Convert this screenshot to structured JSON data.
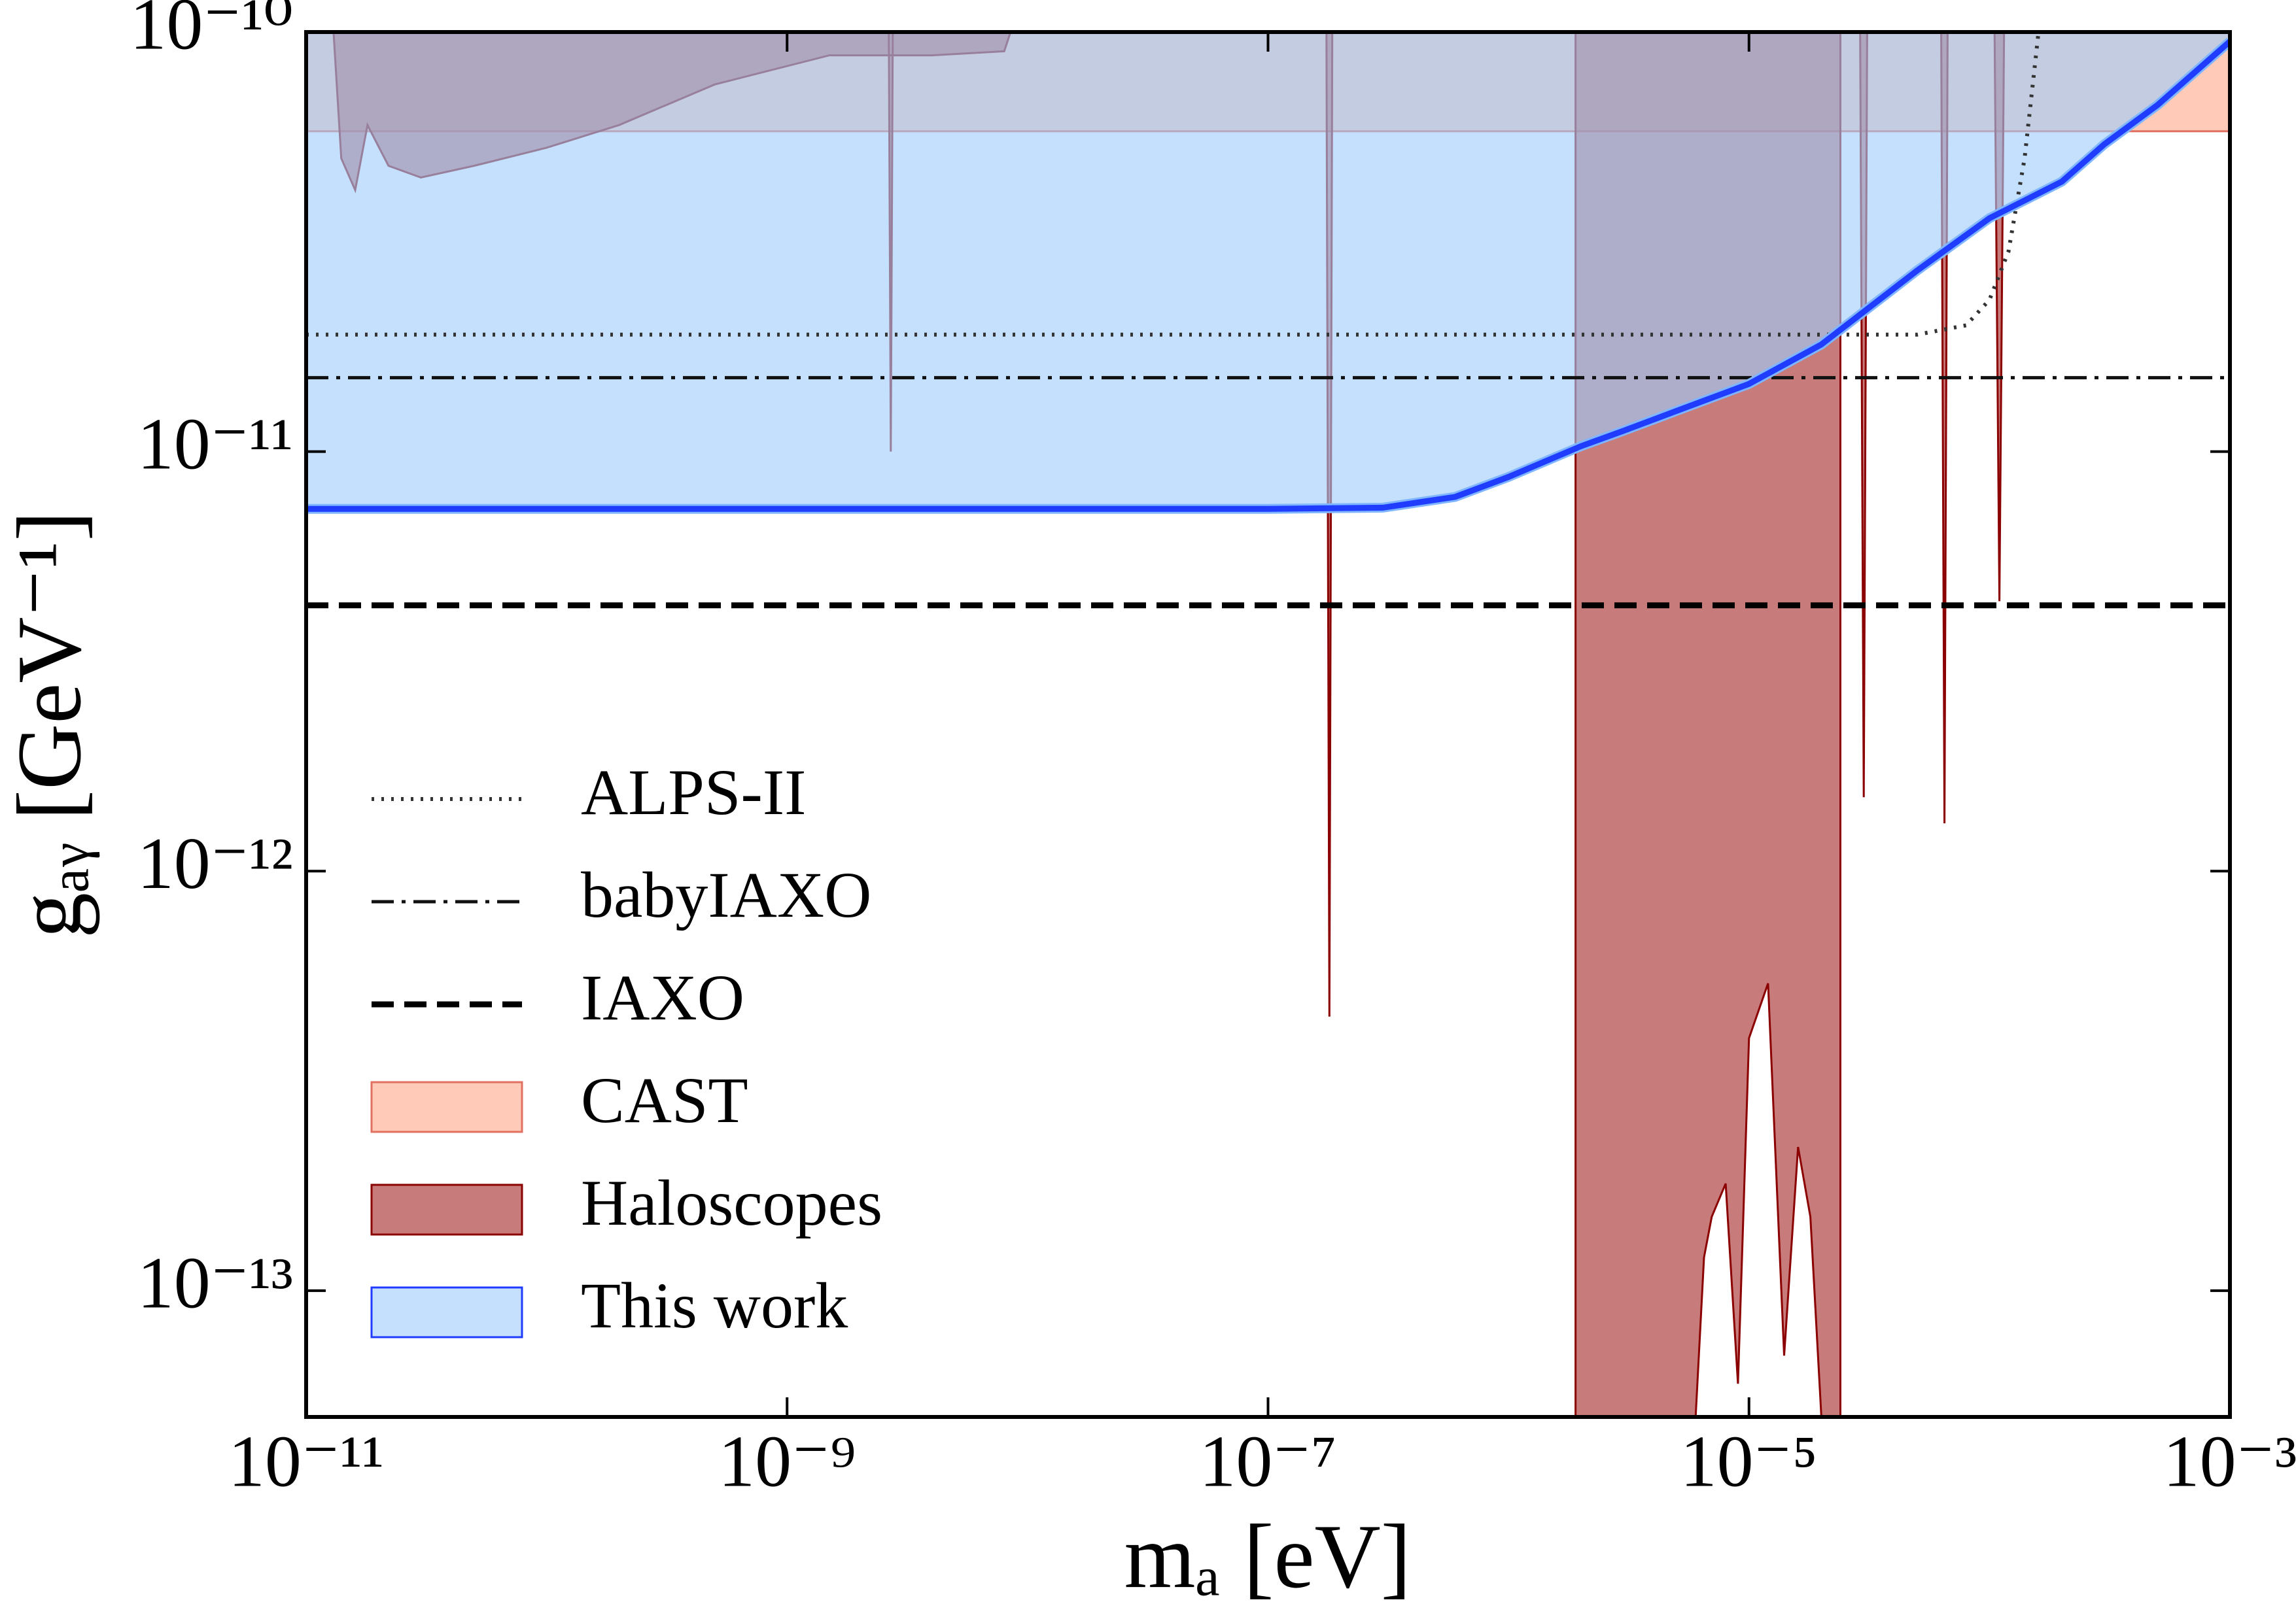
{
  "chart_data": {
    "type": "line",
    "x_label": "mₐ [eV]",
    "y_label": "gₐᵧ [GeV⁻¹]",
    "xscale": "log",
    "yscale": "log",
    "xlim": [
      1e-11,
      0.001
    ],
    "ylim": [
      5e-14,
      1e-10
    ],
    "xticks": [
      {
        "value": 1e-11,
        "label": "10⁻¹¹"
      },
      {
        "value": 1e-09,
        "label": "10⁻⁹"
      },
      {
        "value": 1e-07,
        "label": "10⁻⁷"
      },
      {
        "value": 1e-05,
        "label": "10⁻⁵"
      },
      {
        "value": 0.001,
        "label": "10⁻³"
      }
    ],
    "yticks": [
      {
        "value": 1e-13,
        "label": "10⁻¹³"
      },
      {
        "value": 1e-12,
        "label": "10⁻¹²"
      },
      {
        "value": 1e-11,
        "label": "10⁻¹¹"
      },
      {
        "value": 1e-10,
        "label": "10⁻¹⁰"
      }
    ],
    "legend": "lower left",
    "series": [
      {
        "name": "ALPS-II",
        "color": "#333333",
        "linestyle": "dotted",
        "x": [
          1e-11,
          5e-05,
          8e-05,
          0.0001,
          0.00012,
          0.00014,
          0.00016
        ],
        "values": [
          1.9e-11,
          1.9e-11,
          2e-11,
          2.3e-11,
          3e-11,
          5e-11,
          1e-10
        ]
      },
      {
        "name": "babyIAXO",
        "color": "#111111",
        "linestyle": "dashdot",
        "x": [
          1e-11,
          0.001
        ],
        "values": [
          1.5e-11,
          1.5e-11
        ]
      },
      {
        "name": "IAXO",
        "color": "#000000",
        "linestyle": "dashed",
        "x": [
          1e-11,
          0.001
        ],
        "values": [
          4.3e-12,
          4.3e-12
        ]
      },
      {
        "name": "CAST",
        "color": "#e07060",
        "fill_color": "#ffa98c",
        "fill": "above",
        "x": [
          1e-11,
          0.001
        ],
        "values": [
          5.8e-11,
          5.8e-11
        ]
      },
      {
        "name": "Haloscopes",
        "color": "#8b0000",
        "fill_color": "#a52a2a",
        "fill": "above",
        "x": [
          1.3e-11,
          1.4e-11,
          1.6e-11,
          1.8e-11,
          2.2e-11,
          3e-11,
          5e-11,
          1e-10,
          2e-10,
          5e-10,
          1.5e-09,
          4e-09,
          8e-09,
          8.5e-09,
          null,
          2.65e-09,
          2.7e-09,
          2.75e-09,
          null,
          1.75e-07,
          1.8e-07,
          1.85e-07,
          null,
          1.9e-06,
          1.9e-06,
          6e-06,
          6.5e-06,
          7e-06,
          8e-06,
          9e-06,
          1e-05,
          1.2e-05,
          1.4e-05,
          1.6e-05,
          1.8e-05,
          2e-05,
          2.4e-05,
          2.4e-05,
          null,
          2.9e-05,
          3e-05,
          3.1e-05,
          null,
          6.3e-05,
          6.5e-05,
          6.7e-05,
          null,
          0.000105,
          0.00011,
          0.000115
        ],
        "values": [
          1e-10,
          5e-11,
          4.2e-11,
          6e-11,
          4.8e-11,
          4.5e-11,
          4.8e-11,
          5.3e-11,
          6e-11,
          7.5e-11,
          8.8e-11,
          8.8e-11,
          9e-11,
          1e-10,
          null,
          1e-10,
          1e-11,
          1e-10,
          null,
          1e-10,
          4.5e-13,
          1e-10,
          null,
          1e-10,
          5e-14,
          5e-14,
          1.2e-13,
          1.5e-13,
          1.8e-13,
          6e-14,
          4e-13,
          5.4e-13,
          7e-14,
          2.2e-13,
          1.5e-13,
          5e-14,
          5e-14,
          1e-10,
          null,
          1e-10,
          1.5e-12,
          1e-10,
          null,
          1e-10,
          1.3e-12,
          1e-10,
          null,
          1e-10,
          4.4e-12,
          1e-10
        ]
      },
      {
        "name": "This work",
        "color": "#1f3cff",
        "fill_color": "#9fcdfa",
        "fill": "above",
        "linestyle": "solid",
        "x": [
          1e-11,
          1e-07,
          3e-07,
          6e-07,
          1e-06,
          2e-06,
          3e-06,
          5e-06,
          1e-05,
          2e-05,
          5e-05,
          0.0001,
          0.0002,
          0.0003,
          0.0005,
          0.001
        ],
        "values": [
          7.3e-12,
          7.3e-12,
          7.35e-12,
          7.8e-12,
          8.7e-12,
          1.03e-11,
          1.12e-11,
          1.25e-11,
          1.45e-11,
          1.8e-11,
          2.7e-11,
          3.6e-11,
          4.4e-11,
          5.4e-11,
          6.7e-11,
          9.5e-11
        ]
      }
    ]
  }
}
